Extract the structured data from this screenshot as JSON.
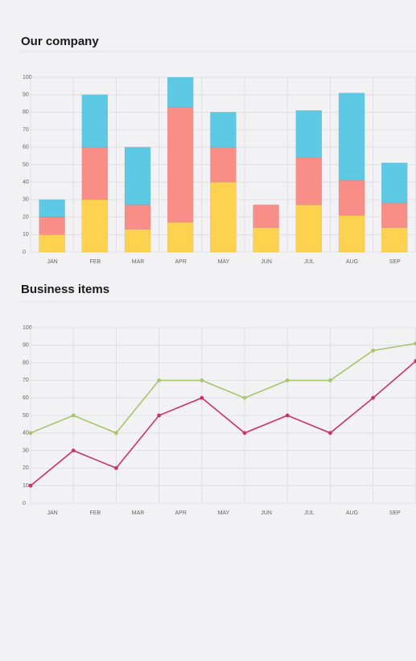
{
  "chart_data": [
    {
      "type": "bar",
      "stacked": true,
      "title": "Our company",
      "categories": [
        "JAN",
        "FEB",
        "MAR",
        "APR",
        "MAY",
        "JUN",
        "JUL",
        "AUG",
        "SEP"
      ],
      "series": [
        {
          "color": "#fdd24e",
          "values": [
            10,
            30,
            13,
            17,
            40,
            14,
            27,
            21,
            14
          ]
        },
        {
          "color": "#f98e89",
          "values": [
            10,
            30,
            14,
            66,
            20,
            13,
            27,
            20,
            14
          ]
        },
        {
          "color": "#5ec9e4",
          "values": [
            10,
            30,
            33,
            17,
            20,
            0,
            27,
            50,
            23
          ]
        }
      ],
      "ylim": [
        0,
        100
      ],
      "yticks": [
        0,
        10,
        20,
        30,
        40,
        50,
        60,
        70,
        80,
        90,
        100
      ],
      "grid": true
    },
    {
      "type": "line",
      "title": "Business items",
      "categories": [
        "JAN",
        "FEB",
        "MAR",
        "APR",
        "MAY",
        "JUN",
        "JUL",
        "AUG",
        "SEP",
        null
      ],
      "series": [
        {
          "color": "#a8c56c",
          "values": [
            40,
            50,
            40,
            70,
            70,
            60,
            70,
            70,
            87,
            91
          ]
        },
        {
          "color": "#c9336b",
          "values": [
            10,
            30,
            20,
            50,
            60,
            40,
            50,
            40,
            60,
            81
          ]
        }
      ],
      "ylim": [
        0,
        100
      ],
      "yticks": [
        0,
        10,
        20,
        30,
        40,
        50,
        60,
        70,
        80,
        90,
        100
      ],
      "grid": true
    }
  ]
}
